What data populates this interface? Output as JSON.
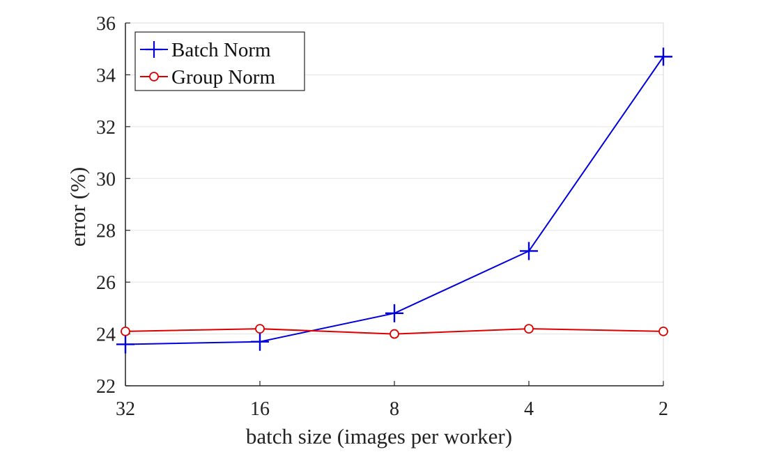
{
  "chart_data": {
    "type": "line",
    "title": "",
    "xlabel": "batch size (images per worker)",
    "ylabel": "error (%)",
    "categories": [
      "32",
      "16",
      "8",
      "4",
      "2"
    ],
    "ylim": [
      22,
      36
    ],
    "yticks": [
      "22",
      "24",
      "26",
      "28",
      "30",
      "32",
      "34",
      "36"
    ],
    "grid": "horizontal",
    "legend_position": "top-left",
    "series": [
      {
        "name": "Batch Norm",
        "color": "#0000dd",
        "marker": "plus",
        "values": [
          23.6,
          23.7,
          24.8,
          27.2,
          34.7
        ]
      },
      {
        "name": "Group Norm",
        "color": "#dd0000",
        "marker": "circle",
        "values": [
          24.1,
          24.2,
          24.0,
          24.2,
          24.1
        ]
      }
    ]
  }
}
